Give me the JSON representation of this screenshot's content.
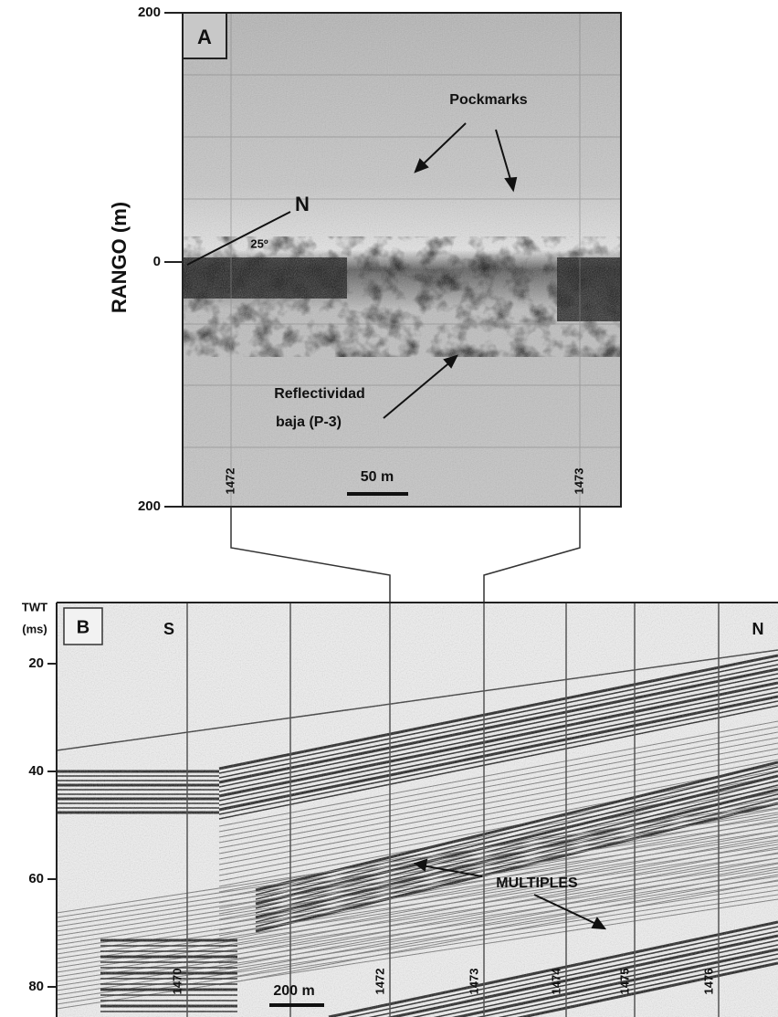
{
  "panel_a": {
    "label": "A",
    "y_axis_label": "RANGO (m)",
    "y_ticks": [
      "200",
      "0",
      "200"
    ],
    "annotations": {
      "pockmarks": "Pockmarks",
      "north": "N",
      "angle": "25º",
      "reflectivity": [
        "Reflectividad",
        "baja (P-3)"
      ]
    },
    "fix_labels": [
      "1472",
      "1473"
    ],
    "scale_bar": "50 m"
  },
  "panel_b": {
    "label": "B",
    "axis_title": [
      "TWT",
      "(ms)"
    ],
    "y_ticks": [
      "20",
      "40",
      "60",
      "80"
    ],
    "direction_labels": [
      "S",
      "N"
    ],
    "annotation": "MULTIPLES",
    "fix_labels": [
      "1470",
      "1472",
      "1473",
      "1474",
      "1475",
      "1476"
    ],
    "scale_bar": "200 m"
  }
}
